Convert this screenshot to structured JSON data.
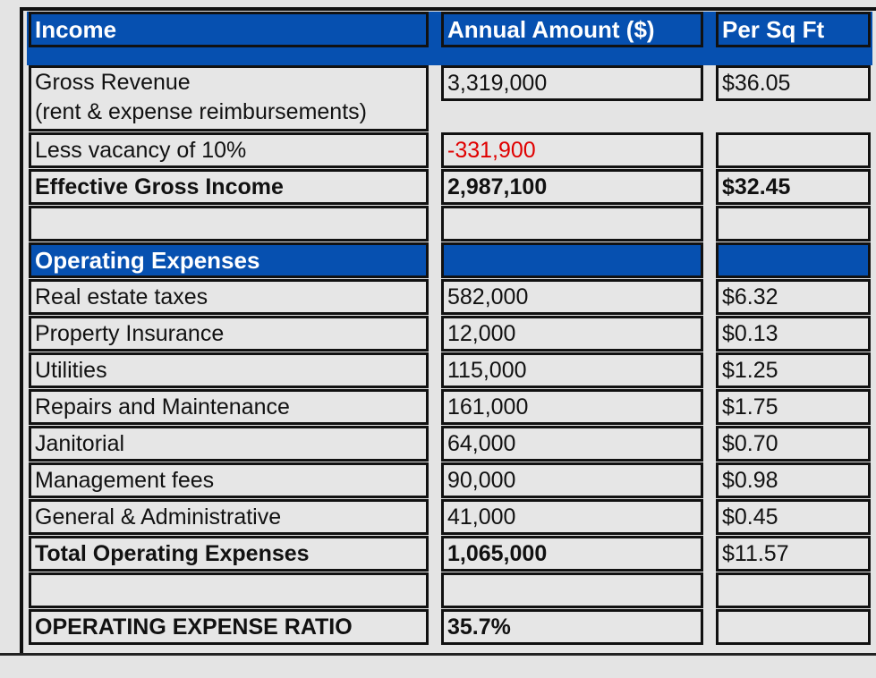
{
  "headers": {
    "income": "Income",
    "annual": "Annual Amount ($)",
    "per_sqft": "Per Sq Ft"
  },
  "income_rows": [
    {
      "label": "Gross Revenue",
      "label2": "(rent & expense reimbursements)",
      "amount": "3,319,000",
      "per_sqft": "$36.05"
    },
    {
      "label": "Less vacancy of 10%",
      "amount": "-331,900",
      "per_sqft": ""
    },
    {
      "label": "Effective Gross Income",
      "amount": "2,987,100",
      "per_sqft": "$32.45"
    }
  ],
  "opex_header": "Operating Expenses",
  "opex_rows": [
    {
      "label": "Real estate taxes",
      "amount": "582,000",
      "per_sqft": "$6.32"
    },
    {
      "label": "Property Insurance",
      "amount": "12,000",
      "per_sqft": "$0.13"
    },
    {
      "label": "Utilities",
      "amount": "115,000",
      "per_sqft": "$1.25"
    },
    {
      "label": "Repairs and Maintenance",
      "amount": "161,000",
      "per_sqft": "$1.75"
    },
    {
      "label": "Janitorial",
      "amount": "64,000",
      "per_sqft": "$0.70"
    },
    {
      "label": "Management fees",
      "amount": "90,000",
      "per_sqft": "$0.98"
    },
    {
      "label": "General & Administrative",
      "amount": "41,000",
      "per_sqft": "$0.45"
    },
    {
      "label": "Total Operating Expenses",
      "amount": "1,065,000",
      "per_sqft": "$11.57"
    }
  ],
  "ratio": {
    "label": "OPERATING EXPENSE RATIO",
    "value": "35.7%"
  },
  "colors": {
    "header_blue": "#0650b0",
    "negative": "#e00000"
  }
}
